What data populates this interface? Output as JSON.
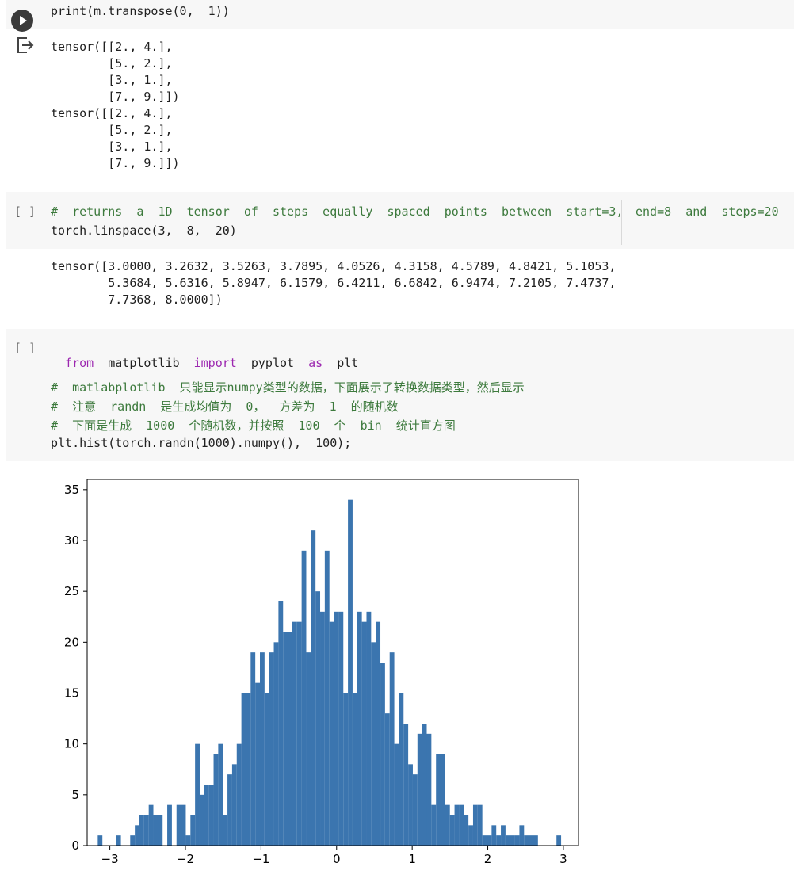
{
  "cell1": {
    "code": "print(m.transpose(0,  1))",
    "output_lines": [
      "tensor([[2., 4.],",
      "        [5., 2.],",
      "        [3., 1.],",
      "        [7., 9.]])",
      "tensor([[2., 4.],",
      "        [5., 2.],",
      "        [3., 1.],",
      "        [7., 9.]])"
    ]
  },
  "cell2": {
    "bracket": "[ ]",
    "comment": "#  returns  a  1D  tensor  of  steps  equally  spaced  points  between  start=3,",
    "comment_right": "end=8  and  steps=20",
    "code": "torch.linspace(3,  8,  20)",
    "output_lines": [
      "tensor([3.0000, 3.2632, 3.5263, 3.7895, 4.0526, 4.3158, 4.5789, 4.8421, 5.1053,",
      "        5.3684, 5.6316, 5.8947, 6.1579, 6.4211, 6.6842, 6.9474, 7.2105, 7.4737,",
      "        7.7368, 8.0000])"
    ]
  },
  "cell3": {
    "bracket": "[ ]",
    "import_from": "from",
    "import_module": "matplotlib",
    "import_kw": "import",
    "import_name": "pyplot",
    "import_as": "as",
    "import_alias": "plt",
    "comment1": "#  matlabplotlib  只能显示numpy类型的数据，下面展示了转换数据类型，然后显示",
    "comment2": "#  注意  randn  是生成均值为  0，  方差为  1  的随机数",
    "comment3": "#  下面是生成  1000  个随机数，并按照  100  个  bin  统计直方图",
    "code": "plt.hist(torch.randn(1000).numpy(),  100);"
  },
  "colors": {
    "bar": "#3b75af",
    "cell_bg": "#f7f7f7",
    "keyword": "#9c27b0",
    "comment": "#3d7a3d"
  },
  "chart_data": {
    "type": "bar",
    "title": "",
    "xlabel": "",
    "ylabel": "",
    "xlim": [
      -3.3,
      3.2
    ],
    "ylim": [
      0,
      36
    ],
    "xticks": [
      "−3",
      "−2",
      "−1",
      "0",
      "1",
      "2",
      "3"
    ],
    "xtick_values": [
      -3,
      -2,
      -1,
      0,
      1,
      2,
      3
    ],
    "yticks": [
      "0",
      "5",
      "10",
      "15",
      "20",
      "25",
      "30",
      "35"
    ],
    "ytick_values": [
      0,
      5,
      10,
      15,
      20,
      25,
      30,
      35
    ],
    "bin_start": -3.16,
    "bin_width": 0.0613,
    "values": [
      1,
      0,
      0,
      0,
      1,
      0,
      0,
      1,
      2,
      3,
      3,
      4,
      3,
      3,
      0,
      4,
      0,
      4,
      4,
      1,
      3,
      10,
      5,
      6,
      6,
      9,
      10,
      3,
      7,
      8,
      10,
      15,
      15,
      19,
      16,
      19,
      15,
      19,
      20,
      24,
      21,
      21,
      22,
      22,
      29,
      19,
      31,
      25,
      23,
      29,
      22,
      23,
      23,
      15,
      34,
      15,
      23,
      22,
      23,
      20,
      22,
      18,
      13,
      19,
      10,
      15,
      12,
      8,
      7,
      11,
      12,
      11,
      4,
      9,
      9,
      4,
      3,
      4,
      4,
      3,
      2,
      4,
      4,
      1,
      1,
      2,
      1,
      2,
      1,
      1,
      1,
      2,
      1,
      1,
      1,
      0,
      0,
      0,
      0,
      1
    ]
  }
}
